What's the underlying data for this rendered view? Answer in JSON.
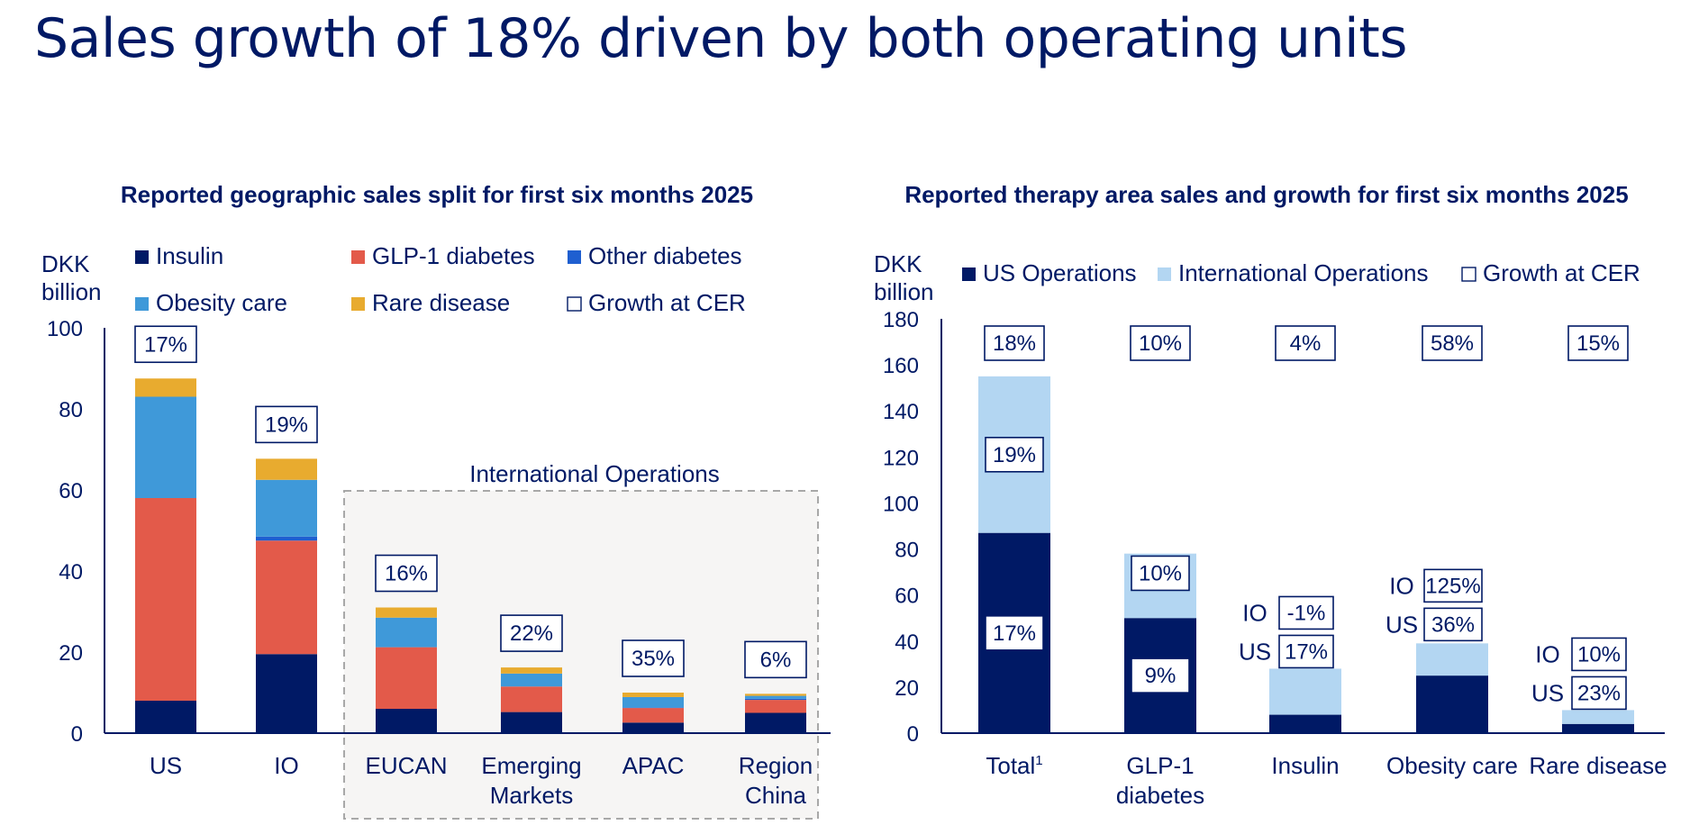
{
  "page": {
    "title": "Sales growth of 18% driven by both operating units"
  },
  "colors": {
    "navy": "#001965",
    "insulin": "#001965",
    "glp1": "#E35A4A",
    "other_diabetes": "#1F5FD0",
    "obesity": "#3F99D9",
    "rare": "#E8AB2F",
    "us_ops": "#001965",
    "intl_ops": "#B3D6F2",
    "io_box": "#F6F5F4",
    "io_border": "#A8A8A8"
  },
  "chart_data": [
    {
      "type": "bar",
      "stacked": true,
      "title": "Reported geographic sales split for first six months 2025",
      "ylabel": "DKK billion",
      "ylim": [
        0,
        100
      ],
      "yticks": [
        0,
        20,
        40,
        60,
        80,
        100
      ],
      "grid": false,
      "legend_position": "top",
      "legend": [
        "Insulin",
        "GLP-1 diabetes",
        "Other diabetes",
        "Obesity care",
        "Rare disease",
        "Growth at CER"
      ],
      "categories": [
        "US",
        "IO",
        "EUCAN",
        "Emerging Markets",
        "APAC",
        "Region China"
      ],
      "series": [
        {
          "name": "Insulin",
          "values": [
            8,
            19.5,
            6,
            5.2,
            2.6,
            5
          ]
        },
        {
          "name": "GLP-1 diabetes",
          "values": [
            50,
            28,
            15.2,
            6.3,
            3.6,
            3.2
          ]
        },
        {
          "name": "Other diabetes",
          "values": [
            0,
            1,
            0,
            0,
            0.1,
            0.3
          ]
        },
        {
          "name": "Obesity care",
          "values": [
            25,
            14,
            7.3,
            3.2,
            2.6,
            0.7
          ]
        },
        {
          "name": "Rare disease",
          "values": [
            4.5,
            5.2,
            2.5,
            1.5,
            1.1,
            0.5
          ]
        }
      ],
      "growth_at_cer": [
        "17%",
        "19%",
        "16%",
        "22%",
        "35%",
        "6%"
      ],
      "group_label": "International Operations"
    },
    {
      "type": "bar",
      "stacked": true,
      "title": "Reported therapy area sales and growth for first six months 2025",
      "ylabel": "DKK billion",
      "ylim": [
        0,
        180
      ],
      "yticks": [
        0,
        20,
        40,
        60,
        80,
        100,
        120,
        140,
        160,
        180
      ],
      "grid": false,
      "legend_position": "top",
      "legend": [
        "US Operations",
        "International Operations",
        "Growth at CER"
      ],
      "categories": [
        "Total",
        "GLP-1 diabetes",
        "Insulin",
        "Obesity care",
        "Rare disease"
      ],
      "footnote_marker": "1",
      "series": [
        {
          "name": "US Operations",
          "values": [
            87,
            50,
            8,
            25,
            4
          ]
        },
        {
          "name": "International Operations",
          "values": [
            68,
            28,
            20,
            14,
            6
          ]
        }
      ],
      "growth_at_cer": [
        "18%",
        "10%",
        "4%",
        "58%",
        "15%"
      ],
      "segment_growth": {
        "Total": {
          "US": "17%",
          "IO": "19%"
        },
        "GLP-1 diabetes": {
          "US": "9%",
          "IO": "10%"
        },
        "Insulin": {
          "US": "17%",
          "IO": "-1%"
        },
        "Obesity care": {
          "US": "36%",
          "IO": "125%"
        },
        "Rare disease": {
          "US": "23%",
          "IO": "10%"
        }
      },
      "segment_tags": {
        "us": "US",
        "io": "IO"
      }
    }
  ]
}
